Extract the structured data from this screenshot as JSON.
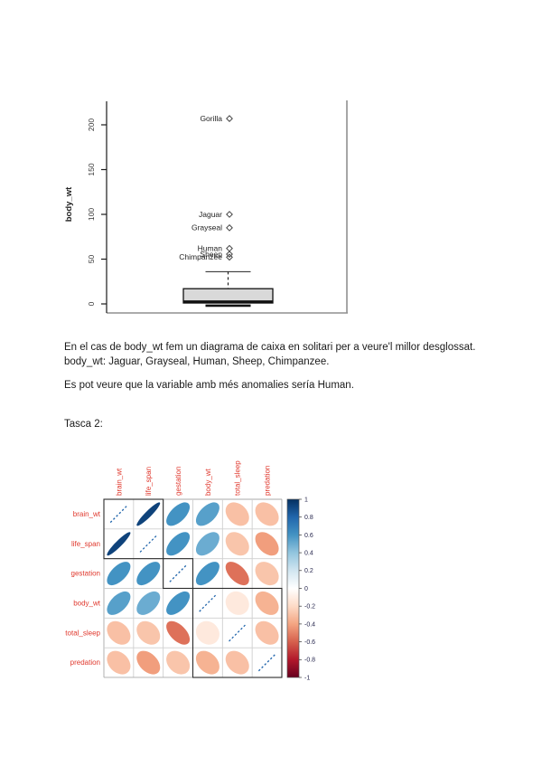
{
  "paragraphs": {
    "p1_line1": "En el cas de body_wt fem un diagrama de caixa en solitari per a veure'l millor desglossat.",
    "p1_line2": "body_wt: Jaguar, Grayseal, Human, Sheep, Chimpanzee.",
    "p2": "Es pot veure que la variable amb més anomalies sería Human.",
    "heading_tasca2": "Tasca 2:"
  },
  "chart_data": [
    {
      "type": "boxplot",
      "ylabel": "body_wt",
      "ylim": [
        0,
        215
      ],
      "yticks": [
        0,
        50,
        100,
        150,
        200
      ],
      "box": {
        "q1": 1,
        "median": 2.5,
        "q3": 17,
        "whisker_low": 0.1,
        "whisker_high": 36
      },
      "box_fill": "#d9d9d9",
      "outliers": [
        {
          "name": "Gorilla",
          "value": 207
        },
        {
          "name": "Jaguar",
          "value": 100
        },
        {
          "name": "Grayseal",
          "value": 85
        },
        {
          "name": "Human",
          "value": 62
        },
        {
          "name": "Sheep",
          "value": 55.5
        },
        {
          "name": "Chimpanzee",
          "value": 52.2
        }
      ],
      "marker": "open-diamond"
    },
    {
      "type": "heatmap",
      "subtype": "correlation-ellipse",
      "variables": [
        "brain_wt",
        "life_span",
        "gestation",
        "body_wt",
        "total_sleep",
        "predation"
      ],
      "matrix": [
        [
          1.0,
          0.93,
          0.6,
          0.55,
          -0.3,
          -0.3
        ],
        [
          0.93,
          1.0,
          0.6,
          0.5,
          -0.28,
          -0.42
        ],
        [
          0.6,
          0.6,
          1.0,
          0.6,
          -0.55,
          -0.28
        ],
        [
          0.55,
          0.5,
          0.6,
          1.0,
          -0.12,
          -0.35
        ],
        [
          -0.3,
          -0.28,
          -0.55,
          -0.12,
          1.0,
          -0.3
        ],
        [
          -0.3,
          -0.42,
          -0.28,
          -0.35,
          -0.3,
          1.0
        ]
      ],
      "cluster_rects": [
        [
          0,
          2
        ],
        [
          2,
          3
        ],
        [
          3,
          6
        ]
      ],
      "label_color": "#e0392e",
      "diag_color": "#2166ac",
      "colorbar": {
        "ticks": [
          1,
          0.8,
          0.6,
          0.4,
          0.2,
          0,
          -0.2,
          -0.4,
          -0.6,
          -0.8,
          -1
        ],
        "position": "right"
      },
      "palette_stops": [
        [
          -1.0,
          "#67001f"
        ],
        [
          -0.8,
          "#b2182b"
        ],
        [
          -0.6,
          "#d6604d"
        ],
        [
          -0.4,
          "#f4a582"
        ],
        [
          -0.2,
          "#fddbc7"
        ],
        [
          0.0,
          "#ffffff"
        ],
        [
          0.2,
          "#d1e5f0"
        ],
        [
          0.4,
          "#92c5de"
        ],
        [
          0.6,
          "#4393c3"
        ],
        [
          0.8,
          "#2166ac"
        ],
        [
          1.0,
          "#053061"
        ]
      ]
    }
  ]
}
